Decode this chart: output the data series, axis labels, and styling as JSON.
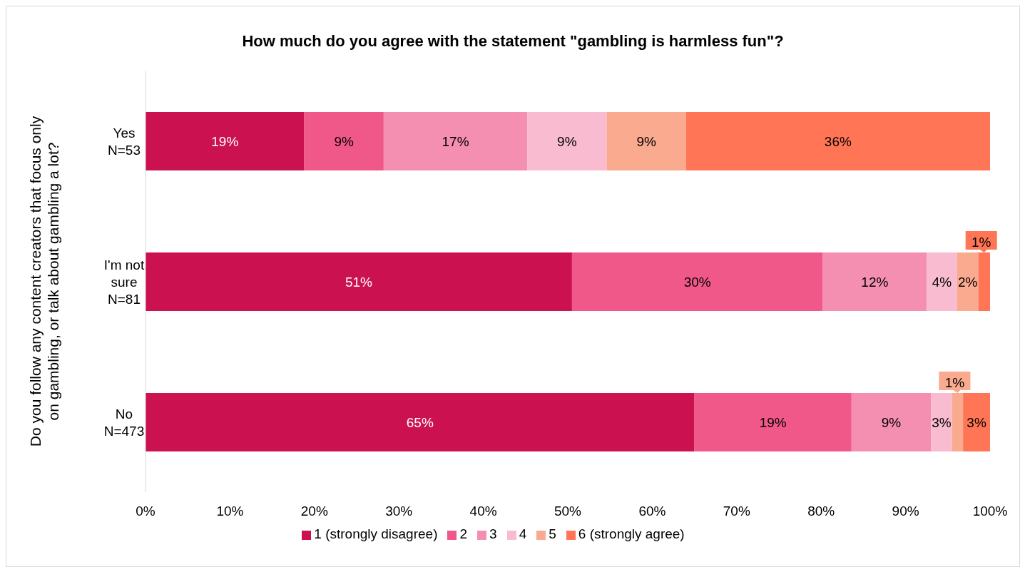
{
  "chart_data": {
    "type": "bar",
    "orientation": "horizontal",
    "stacked": true,
    "title": "How much do you agree with the statement \"gambling is harmless fun\"?",
    "ylabel": "Do you follow any content creators that focus only\non gambling, or talk about gambling a lot?",
    "categories": [
      "Yes\nN=53",
      "I'm not\nsure\nN=81",
      "No\nN=473"
    ],
    "series": [
      {
        "name": "1 (strongly disagree)",
        "color": "#cc1150",
        "values": [
          18.8,
          50.5,
          65.0
        ],
        "value_labels": [
          "19%",
          "51%",
          "65%"
        ]
      },
      {
        "name": "2",
        "color": "#f0588a",
        "values": [
          9.4,
          29.7,
          18.6
        ],
        "value_labels": [
          "9%",
          "30%",
          "19%"
        ]
      },
      {
        "name": "3",
        "color": "#f48fb1",
        "values": [
          17.0,
          12.3,
          9.4
        ],
        "value_labels": [
          "17%",
          "12%",
          "9%"
        ]
      },
      {
        "name": "4",
        "color": "#f8bbd0",
        "values": [
          9.4,
          3.6,
          2.5
        ],
        "value_labels": [
          "9%",
          "4%",
          "3%"
        ]
      },
      {
        "name": "5",
        "color": "#f9aa8f",
        "values": [
          9.4,
          2.5,
          1.3
        ],
        "value_labels": [
          "9%",
          "2%",
          "1%"
        ]
      },
      {
        "name": "6 (strongly agree)",
        "color": "#ff7555",
        "values": [
          36.0,
          1.4,
          3.3
        ],
        "value_labels": [
          "36%",
          "1%",
          "3%"
        ]
      }
    ],
    "xlim": [
      0,
      100
    ],
    "xticks": [
      {
        "value": 0,
        "label": "0%"
      },
      {
        "value": 10,
        "label": "10%"
      },
      {
        "value": 20,
        "label": "20%"
      },
      {
        "value": 30,
        "label": "30%"
      },
      {
        "value": 40,
        "label": "40%"
      },
      {
        "value": 50,
        "label": "50%"
      },
      {
        "value": 60,
        "label": "60%"
      },
      {
        "value": 70,
        "label": "70%"
      },
      {
        "value": 80,
        "label": "80%"
      },
      {
        "value": 90,
        "label": "90%"
      },
      {
        "value": 100,
        "label": "100%"
      }
    ],
    "grid": false,
    "legend": "bottom"
  }
}
